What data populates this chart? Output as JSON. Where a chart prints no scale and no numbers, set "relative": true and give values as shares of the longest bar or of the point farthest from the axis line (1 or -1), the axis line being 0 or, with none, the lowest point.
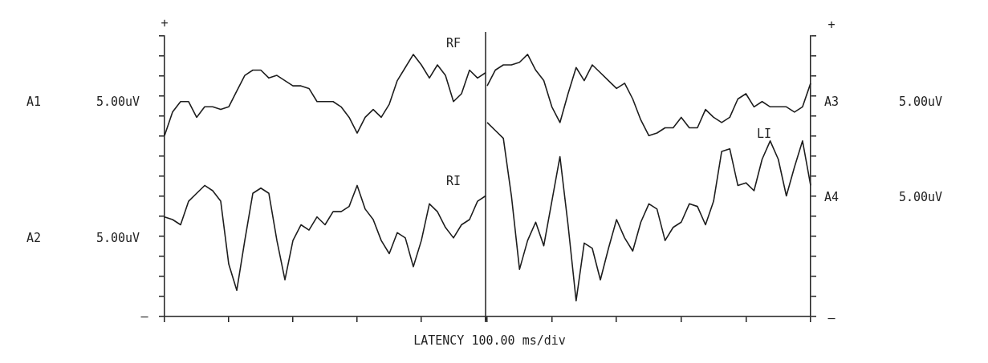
{
  "chart_data": [
    {
      "type": "line",
      "relative": true,
      "xlabel": "LATENCY 100.00 ms/div",
      "legend": false,
      "annotations": [
        "+",
        "A1",
        "5.00uV",
        "A2",
        "5.00uV",
        "–"
      ],
      "categories": [
        null,
        null,
        null,
        null,
        null,
        null,
        null,
        null,
        null,
        null,
        null,
        null,
        null,
        null,
        null,
        null,
        null,
        null,
        null,
        null,
        null,
        null,
        null,
        null,
        null,
        null,
        null,
        null,
        null,
        null,
        null,
        null,
        null,
        null,
        null,
        null,
        null,
        null,
        null,
        null,
        null
      ],
      "series": [
        {
          "name": "RF",
          "color": "#1e1e1e",
          "values": [
            0.69,
            0.78,
            0.82,
            0.82,
            0.76,
            0.8,
            0.8,
            0.79,
            0.8,
            0.86,
            0.92,
            0.94,
            0.94,
            0.91,
            0.92,
            0.9,
            0.88,
            0.88,
            0.87,
            0.82,
            0.82,
            0.82,
            0.8,
            0.76,
            0.7,
            0.76,
            0.79,
            0.76,
            0.81,
            0.9,
            0.95,
            1.0,
            0.96,
            0.91,
            0.96,
            0.92,
            0.82,
            0.85,
            0.94,
            0.91,
            0.93
          ]
        },
        {
          "name": "RI",
          "color": "#1e1e1e",
          "values": [
            0.38,
            0.37,
            0.35,
            0.44,
            0.47,
            0.5,
            0.48,
            0.44,
            0.2,
            0.1,
            0.29,
            0.47,
            0.49,
            0.47,
            0.29,
            0.14,
            0.29,
            0.35,
            0.33,
            0.38,
            0.35,
            0.4,
            0.4,
            0.42,
            0.5,
            0.41,
            0.37,
            0.29,
            0.24,
            0.32,
            0.3,
            0.19,
            0.29,
            0.43,
            0.4,
            0.34,
            0.3,
            0.35,
            0.37,
            0.44,
            0.46
          ]
        }
      ]
    },
    {
      "type": "line",
      "relative": true,
      "legend": false,
      "annotations": [
        "+",
        "A3",
        "5.00uV",
        "A4",
        "5.00uV",
        "–"
      ],
      "categories": [
        null,
        null,
        null,
        null,
        null,
        null,
        null,
        null,
        null,
        null,
        null,
        null,
        null,
        null,
        null,
        null,
        null,
        null,
        null,
        null,
        null,
        null,
        null,
        null,
        null,
        null,
        null,
        null,
        null,
        null,
        null,
        null,
        null,
        null,
        null,
        null,
        null,
        null,
        null,
        null,
        null
      ],
      "series": [
        {
          "color": "#1e1e1e",
          "values": [
            0.88,
            0.94,
            0.96,
            0.96,
            0.97,
            1.0,
            0.94,
            0.9,
            0.8,
            0.74,
            0.85,
            0.95,
            0.9,
            0.96,
            0.93,
            0.9,
            0.87,
            0.89,
            0.83,
            0.75,
            0.69,
            0.7,
            0.72,
            0.72,
            0.76,
            0.72,
            0.72,
            0.79,
            0.76,
            0.74,
            0.76,
            0.83,
            0.85,
            0.8,
            0.82,
            0.8,
            0.8,
            0.8,
            0.78,
            0.8,
            0.89
          ]
        },
        {
          "name": "LI",
          "color": "#1e1e1e",
          "values": [
            0.74,
            0.71,
            0.68,
            0.46,
            0.18,
            0.29,
            0.36,
            0.27,
            0.44,
            0.61,
            0.35,
            0.06,
            0.28,
            0.26,
            0.14,
            0.26,
            0.37,
            0.3,
            0.25,
            0.36,
            0.43,
            0.41,
            0.29,
            0.34,
            0.36,
            0.43,
            0.42,
            0.35,
            0.44,
            0.63,
            0.64,
            0.5,
            0.51,
            0.48,
            0.6,
            0.67,
            0.6,
            0.46,
            0.57,
            0.67,
            0.5
          ]
        }
      ]
    }
  ]
}
